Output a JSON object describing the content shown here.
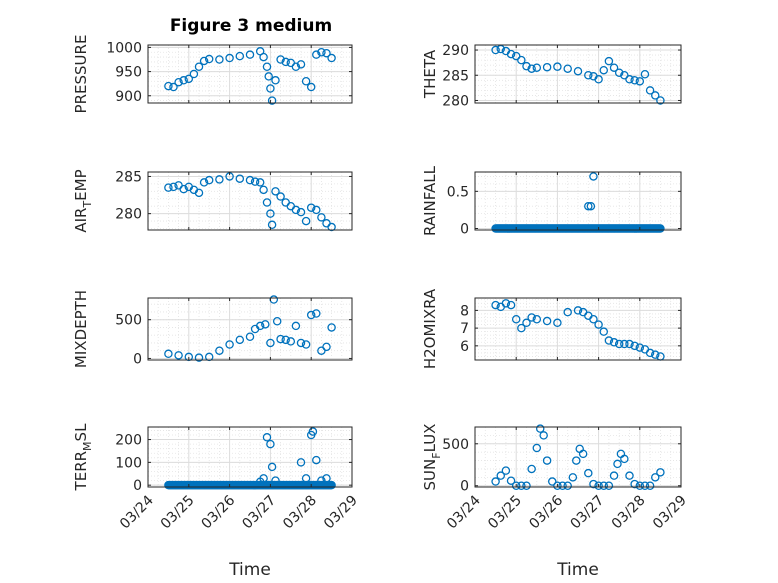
{
  "title": "Figure 3 medium",
  "marker_color": "#0072BD",
  "x_ticks": [
    "03/24",
    "03/25",
    "03/26",
    "03/27",
    "03/28",
    "03/29"
  ],
  "xlabel": "Time",
  "chart_data": [
    {
      "type": "scatter",
      "id": "pressure",
      "ylabel": "PRESSURE",
      "xlim": [
        "03/24 00:00",
        "03/29 00:00"
      ],
      "ylim": [
        885,
        1005
      ],
      "y_ticks": [
        900,
        950,
        1000
      ],
      "grid": true,
      "x": [
        "03/24 12:00",
        "03/24 15:00",
        "03/24 18:00",
        "03/24 21:00",
        "03/25 00:00",
        "03/25 03:00",
        "03/25 06:00",
        "03/25 09:00",
        "03/25 12:00",
        "03/25 18:00",
        "03/26 00:00",
        "03/26 06:00",
        "03/26 12:00",
        "03/26 18:00",
        "03/26 20:00",
        "03/26 22:00",
        "03/26 23:00",
        "03/27 00:00",
        "03/27 01:00",
        "03/27 03:00",
        "03/27 06:00",
        "03/27 09:00",
        "03/27 12:00",
        "03/27 15:00",
        "03/27 18:00",
        "03/27 21:00",
        "03/28 00:00",
        "03/28 03:00",
        "03/28 06:00",
        "03/28 09:00",
        "03/28 12:00"
      ],
      "y": [
        920,
        918,
        928,
        932,
        935,
        945,
        960,
        972,
        976,
        975,
        978,
        982,
        985,
        992,
        980,
        960,
        940,
        915,
        890,
        932,
        975,
        970,
        968,
        960,
        965,
        930,
        918,
        985,
        990,
        988,
        978
      ]
    },
    {
      "type": "scatter",
      "id": "theta",
      "ylabel": "THETA",
      "xlim": [
        "03/24 00:00",
        "03/29 00:00"
      ],
      "ylim": [
        279.5,
        291
      ],
      "y_ticks": [
        280,
        285,
        290
      ],
      "grid": true,
      "x": [
        "03/24 12:00",
        "03/24 15:00",
        "03/24 18:00",
        "03/24 21:00",
        "03/25 00:00",
        "03/25 03:00",
        "03/25 06:00",
        "03/25 09:00",
        "03/25 12:00",
        "03/25 18:00",
        "03/26 00:00",
        "03/26 06:00",
        "03/26 12:00",
        "03/26 18:00",
        "03/26 21:00",
        "03/27 00:00",
        "03/27 03:00",
        "03/27 06:00",
        "03/27 09:00",
        "03/27 12:00",
        "03/27 15:00",
        "03/27 18:00",
        "03/27 21:00",
        "03/28 00:00",
        "03/28 03:00",
        "03/28 06:00",
        "03/28 09:00",
        "03/28 12:00"
      ],
      "y": [
        290,
        290.2,
        289.8,
        289.2,
        288.8,
        288,
        286.8,
        286.3,
        286.5,
        286.6,
        286.7,
        286.3,
        285.8,
        285,
        284.8,
        284.2,
        286,
        287.8,
        286.5,
        285.5,
        285,
        284.2,
        284,
        283.8,
        285.2,
        282,
        281,
        280
      ]
    },
    {
      "type": "scatter",
      "id": "air_temp",
      "ylabel": "AIR",
      "ylabel_sub": "T",
      "ylabel_rest": "EMP",
      "xlim": [
        "03/24 00:00",
        "03/29 00:00"
      ],
      "ylim": [
        277.8,
        285.6
      ],
      "y_ticks": [
        280,
        285
      ],
      "grid": true,
      "x": [
        "03/24 12:00",
        "03/24 15:00",
        "03/24 18:00",
        "03/24 21:00",
        "03/25 00:00",
        "03/25 03:00",
        "03/25 06:00",
        "03/25 09:00",
        "03/25 12:00",
        "03/25 18:00",
        "03/26 00:00",
        "03/26 06:00",
        "03/26 12:00",
        "03/26 15:00",
        "03/26 18:00",
        "03/26 20:00",
        "03/26 22:00",
        "03/27 00:00",
        "03/27 01:00",
        "03/27 03:00",
        "03/27 06:00",
        "03/27 09:00",
        "03/27 12:00",
        "03/27 15:00",
        "03/27 18:00",
        "03/27 21:00",
        "03/28 00:00",
        "03/28 03:00",
        "03/28 06:00",
        "03/28 09:00",
        "03/28 12:00"
      ],
      "y": [
        283.5,
        283.6,
        283.8,
        283.3,
        283.6,
        283.2,
        282.8,
        284.2,
        284.5,
        284.6,
        285,
        284.7,
        284.5,
        284.3,
        284.2,
        283.2,
        281.5,
        280,
        278.5,
        283,
        282.3,
        281.5,
        281,
        280.5,
        280.2,
        279,
        280.8,
        280.5,
        279.5,
        278.7,
        278.2
      ]
    },
    {
      "type": "scatter",
      "id": "rainfall",
      "ylabel": "RAINFALL",
      "xlim": [
        "03/24 00:00",
        "03/29 00:00"
      ],
      "ylim": [
        -0.02,
        0.76
      ],
      "y_ticks": [
        0,
        0.5
      ],
      "y_tick_labels": [
        "0",
        "0.5"
      ],
      "grid": true,
      "x_range_zero": [
        "03/24 12:00",
        "03/28 12:00"
      ],
      "x": [
        "03/26 18:00",
        "03/26 19:30",
        "03/26 21:00"
      ],
      "y": [
        0.3,
        0.3,
        0.7
      ]
    },
    {
      "type": "scatter",
      "id": "mixdepth",
      "ylabel": "MIXDEPTH",
      "xlim": [
        "03/24 00:00",
        "03/29 00:00"
      ],
      "ylim": [
        -20,
        780
      ],
      "y_ticks": [
        0,
        500
      ],
      "grid": true,
      "x": [
        "03/24 12:00",
        "03/24 18:00",
        "03/25 00:00",
        "03/25 06:00",
        "03/25 12:00",
        "03/25 18:00",
        "03/26 00:00",
        "03/26 06:00",
        "03/26 12:00",
        "03/26 15:00",
        "03/26 18:00",
        "03/26 21:00",
        "03/27 00:00",
        "03/27 02:00",
        "03/27 04:00",
        "03/27 06:00",
        "03/27 09:00",
        "03/27 12:00",
        "03/27 15:00",
        "03/27 18:00",
        "03/27 21:00",
        "03/28 00:00",
        "03/28 03:00",
        "03/28 06:00",
        "03/28 09:00",
        "03/28 12:00"
      ],
      "y": [
        60,
        40,
        20,
        10,
        20,
        100,
        180,
        240,
        280,
        380,
        420,
        440,
        200,
        760,
        480,
        250,
        240,
        220,
        420,
        200,
        180,
        560,
        580,
        100,
        150,
        400
      ]
    },
    {
      "type": "scatter",
      "id": "h2omixra",
      "ylabel": "H2OMIXRA",
      "xlim": [
        "03/24 00:00",
        "03/29 00:00"
      ],
      "ylim": [
        5.2,
        8.7
      ],
      "y_ticks": [
        6,
        7,
        8
      ],
      "grid": true,
      "x": [
        "03/24 12:00",
        "03/24 15:00",
        "03/24 18:00",
        "03/24 21:00",
        "03/25 00:00",
        "03/25 03:00",
        "03/25 06:00",
        "03/25 09:00",
        "03/25 12:00",
        "03/25 18:00",
        "03/26 00:00",
        "03/26 06:00",
        "03/26 12:00",
        "03/26 15:00",
        "03/26 18:00",
        "03/26 21:00",
        "03/27 00:00",
        "03/27 03:00",
        "03/27 06:00",
        "03/27 09:00",
        "03/27 12:00",
        "03/27 15:00",
        "03/27 18:00",
        "03/27 21:00",
        "03/28 00:00",
        "03/28 03:00",
        "03/28 06:00",
        "03/28 09:00",
        "03/28 12:00"
      ],
      "y": [
        8.3,
        8.2,
        8.4,
        8.3,
        7.5,
        7,
        7.3,
        7.6,
        7.5,
        7.4,
        7.3,
        7.9,
        8,
        7.9,
        7.7,
        7.5,
        7.2,
        6.8,
        6.3,
        6.2,
        6.1,
        6.1,
        6.1,
        6,
        5.9,
        5.8,
        5.6,
        5.5,
        5.4
      ]
    },
    {
      "type": "scatter",
      "id": "terr_msl",
      "ylabel": "TERR",
      "ylabel_sub": "M",
      "ylabel_rest": "SL",
      "xlim": [
        "03/24 00:00",
        "03/29 00:00"
      ],
      "ylim": [
        -8,
        255
      ],
      "y_ticks": [
        0,
        100,
        200
      ],
      "grid": true,
      "x_range_zero": [
        "03/24 12:00",
        "03/28 12:00"
      ],
      "x": [
        "03/26 18:00",
        "03/26 20:00",
        "03/26 22:00",
        "03/27 00:00",
        "03/27 01:00",
        "03/27 03:00",
        "03/27 18:00",
        "03/27 21:00",
        "03/28 00:00",
        "03/28 01:00",
        "03/28 03:00",
        "03/28 06:00",
        "03/28 09:00"
      ],
      "y": [
        15,
        30,
        210,
        180,
        80,
        20,
        100,
        30,
        220,
        235,
        110,
        20,
        30
      ]
    },
    {
      "type": "scatter",
      "id": "sun_flux",
      "ylabel": "SUN",
      "ylabel_sub": "F",
      "ylabel_rest": "LUX",
      "xlim": [
        "03/24 00:00",
        "03/29 00:00"
      ],
      "ylim": [
        -15,
        700
      ],
      "y_ticks": [
        0,
        500
      ],
      "grid": true,
      "x": [
        "03/24 12:00",
        "03/24 15:00",
        "03/24 18:00",
        "03/24 21:00",
        "03/25 00:00",
        "03/25 03:00",
        "03/25 06:00",
        "03/25 09:00",
        "03/25 12:00",
        "03/25 14:00",
        "03/25 16:00",
        "03/25 18:00",
        "03/25 21:00",
        "03/26 00:00",
        "03/26 03:00",
        "03/26 06:00",
        "03/26 09:00",
        "03/26 11:00",
        "03/26 13:00",
        "03/26 15:00",
        "03/26 18:00",
        "03/26 21:00",
        "03/27 00:00",
        "03/27 03:00",
        "03/27 06:00",
        "03/27 09:00",
        "03/27 11:00",
        "03/27 13:00",
        "03/27 15:00",
        "03/27 18:00",
        "03/27 21:00",
        "03/28 00:00",
        "03/28 03:00",
        "03/28 06:00",
        "03/28 09:00",
        "03/28 12:00"
      ],
      "y": [
        50,
        120,
        180,
        60,
        0,
        0,
        0,
        200,
        450,
        680,
        600,
        300,
        50,
        0,
        0,
        0,
        100,
        300,
        440,
        380,
        150,
        20,
        0,
        0,
        0,
        120,
        260,
        380,
        320,
        120,
        20,
        0,
        0,
        0,
        100,
        160
      ]
    }
  ]
}
